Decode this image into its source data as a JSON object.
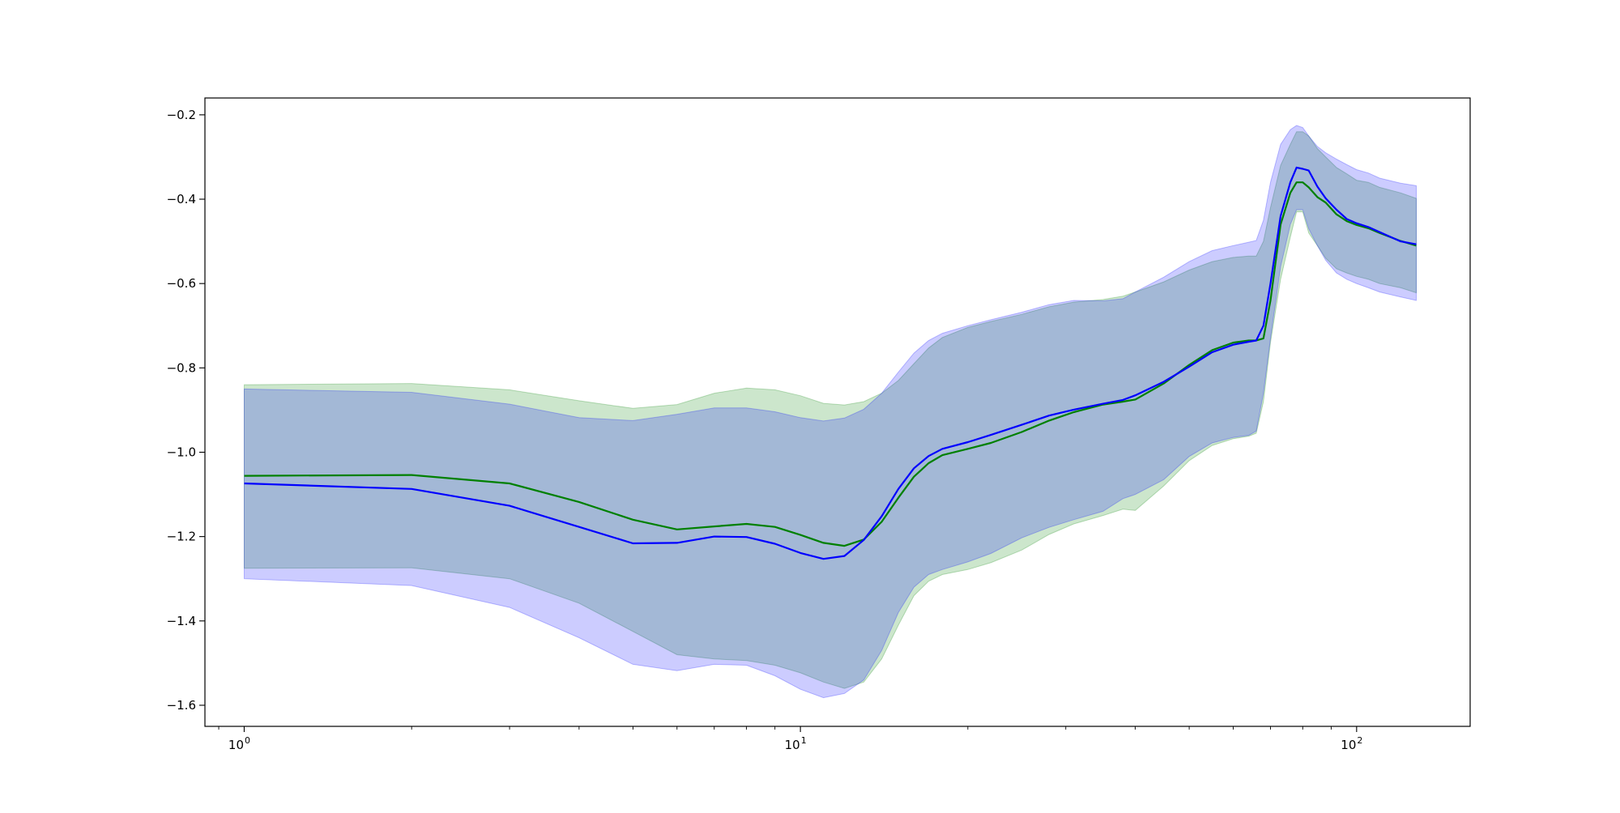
{
  "chart_data": {
    "type": "line",
    "title": "",
    "xlabel": "",
    "ylabel": "",
    "xscale": "log",
    "xlim": [
      0.85,
      160
    ],
    "ylim": [
      -1.65,
      -0.16
    ],
    "grid": false,
    "legend": "none",
    "x_ticks": [
      {
        "value": 1,
        "label": "10",
        "exp": "0"
      },
      {
        "value": 10,
        "label": "10",
        "exp": "1"
      },
      {
        "value": 100,
        "label": "10",
        "exp": "2"
      }
    ],
    "y_ticks": [
      {
        "value": -0.2,
        "label": "−0.2"
      },
      {
        "value": -0.4,
        "label": "−0.4"
      },
      {
        "value": -0.6,
        "label": "−0.6"
      },
      {
        "value": -0.8,
        "label": "−0.8"
      },
      {
        "value": -1.0,
        "label": "−1.0"
      },
      {
        "value": -1.2,
        "label": "−1.2"
      },
      {
        "value": -1.4,
        "label": "−1.4"
      },
      {
        "value": -1.6,
        "label": "−1.6"
      }
    ],
    "series": [
      {
        "color": "#008000",
        "band_color": "#008000",
        "band_opacity": 0.2,
        "x": [
          1,
          2,
          3,
          4,
          5,
          6,
          7,
          8,
          9,
          10,
          11,
          12,
          13,
          14,
          15,
          16,
          17,
          18,
          20,
          22,
          25,
          28,
          31,
          35,
          38,
          40,
          45,
          50,
          55,
          60,
          64,
          66,
          68,
          70,
          73,
          76,
          78,
          80,
          82,
          85,
          88,
          92,
          96,
          100,
          105,
          110,
          120,
          128
        ],
        "y": [
          -1.056,
          -1.054,
          -1.074,
          -1.118,
          -1.16,
          -1.183,
          -1.176,
          -1.17,
          -1.177,
          -1.196,
          -1.215,
          -1.222,
          -1.207,
          -1.165,
          -1.108,
          -1.058,
          -1.026,
          -1.007,
          -0.992,
          -0.978,
          -0.952,
          -0.925,
          -0.905,
          -0.887,
          -0.88,
          -0.875,
          -0.837,
          -0.793,
          -0.758,
          -0.74,
          -0.735,
          -0.735,
          -0.73,
          -0.64,
          -0.46,
          -0.385,
          -0.36,
          -0.36,
          -0.372,
          -0.395,
          -0.408,
          -0.436,
          -0.452,
          -0.461,
          -0.469,
          -0.48,
          -0.499,
          -0.51
        ],
        "upper": [
          -0.84,
          -0.837,
          -0.852,
          -0.878,
          -0.896,
          -0.887,
          -0.86,
          -0.848,
          -0.852,
          -0.866,
          -0.884,
          -0.888,
          -0.88,
          -0.86,
          -0.83,
          -0.79,
          -0.753,
          -0.728,
          -0.704,
          -0.69,
          -0.673,
          -0.655,
          -0.644,
          -0.638,
          -0.63,
          -0.62,
          -0.596,
          -0.568,
          -0.548,
          -0.538,
          -0.535,
          -0.535,
          -0.5,
          -0.42,
          -0.32,
          -0.27,
          -0.24,
          -0.24,
          -0.25,
          -0.28,
          -0.3,
          -0.325,
          -0.34,
          -0.355,
          -0.36,
          -0.372,
          -0.385,
          -0.398
        ],
        "lower": [
          -1.275,
          -1.274,
          -1.3,
          -1.358,
          -1.425,
          -1.48,
          -1.49,
          -1.494,
          -1.505,
          -1.523,
          -1.545,
          -1.56,
          -1.545,
          -1.49,
          -1.41,
          -1.34,
          -1.306,
          -1.29,
          -1.278,
          -1.262,
          -1.232,
          -1.195,
          -1.17,
          -1.15,
          -1.135,
          -1.138,
          -1.08,
          -1.02,
          -0.984,
          -0.968,
          -0.962,
          -0.955,
          -0.88,
          -0.74,
          -0.59,
          -0.49,
          -0.43,
          -0.43,
          -0.48,
          -0.51,
          -0.54,
          -0.565,
          -0.575,
          -0.583,
          -0.59,
          -0.6,
          -0.61,
          -0.622
        ]
      },
      {
        "color": "#0000ff",
        "band_color": "#0000ff",
        "band_opacity": 0.2,
        "x": [
          1,
          2,
          3,
          4,
          5,
          6,
          7,
          8,
          9,
          10,
          11,
          12,
          13,
          14,
          15,
          16,
          17,
          18,
          20,
          22,
          25,
          28,
          31,
          35,
          38,
          40,
          45,
          50,
          55,
          60,
          64,
          66,
          68,
          70,
          73,
          76,
          78,
          80,
          82,
          85,
          88,
          92,
          96,
          100,
          105,
          110,
          120,
          128
        ],
        "y": [
          -1.074,
          -1.087,
          -1.127,
          -1.177,
          -1.216,
          -1.215,
          -1.2,
          -1.201,
          -1.217,
          -1.239,
          -1.253,
          -1.246,
          -1.208,
          -1.152,
          -1.087,
          -1.038,
          -1.009,
          -0.992,
          -0.976,
          -0.959,
          -0.935,
          -0.913,
          -0.899,
          -0.885,
          -0.876,
          -0.865,
          -0.833,
          -0.797,
          -0.763,
          -0.745,
          -0.738,
          -0.735,
          -0.7,
          -0.6,
          -0.44,
          -0.36,
          -0.325,
          -0.328,
          -0.332,
          -0.37,
          -0.398,
          -0.425,
          -0.447,
          -0.457,
          -0.466,
          -0.478,
          -0.5,
          -0.507
        ],
        "upper": [
          -0.85,
          -0.858,
          -0.886,
          -0.918,
          -0.925,
          -0.91,
          -0.895,
          -0.895,
          -0.904,
          -0.918,
          -0.926,
          -0.919,
          -0.898,
          -0.86,
          -0.81,
          -0.765,
          -0.735,
          -0.718,
          -0.7,
          -0.686,
          -0.668,
          -0.65,
          -0.64,
          -0.641,
          -0.636,
          -0.62,
          -0.585,
          -0.548,
          -0.522,
          -0.51,
          -0.502,
          -0.498,
          -0.45,
          -0.36,
          -0.27,
          -0.235,
          -0.225,
          -0.23,
          -0.25,
          -0.275,
          -0.29,
          -0.305,
          -0.318,
          -0.33,
          -0.338,
          -0.35,
          -0.362,
          -0.368
        ],
        "lower": [
          -1.3,
          -1.316,
          -1.368,
          -1.44,
          -1.503,
          -1.518,
          -1.503,
          -1.505,
          -1.53,
          -1.562,
          -1.582,
          -1.572,
          -1.54,
          -1.47,
          -1.38,
          -1.32,
          -1.29,
          -1.278,
          -1.26,
          -1.24,
          -1.203,
          -1.178,
          -1.16,
          -1.14,
          -1.11,
          -1.1,
          -1.065,
          -1.01,
          -0.978,
          -0.965,
          -0.96,
          -0.95,
          -0.86,
          -0.73,
          -0.56,
          -0.46,
          -0.425,
          -0.425,
          -0.47,
          -0.51,
          -0.545,
          -0.575,
          -0.59,
          -0.6,
          -0.61,
          -0.62,
          -0.632,
          -0.64
        ]
      }
    ]
  }
}
